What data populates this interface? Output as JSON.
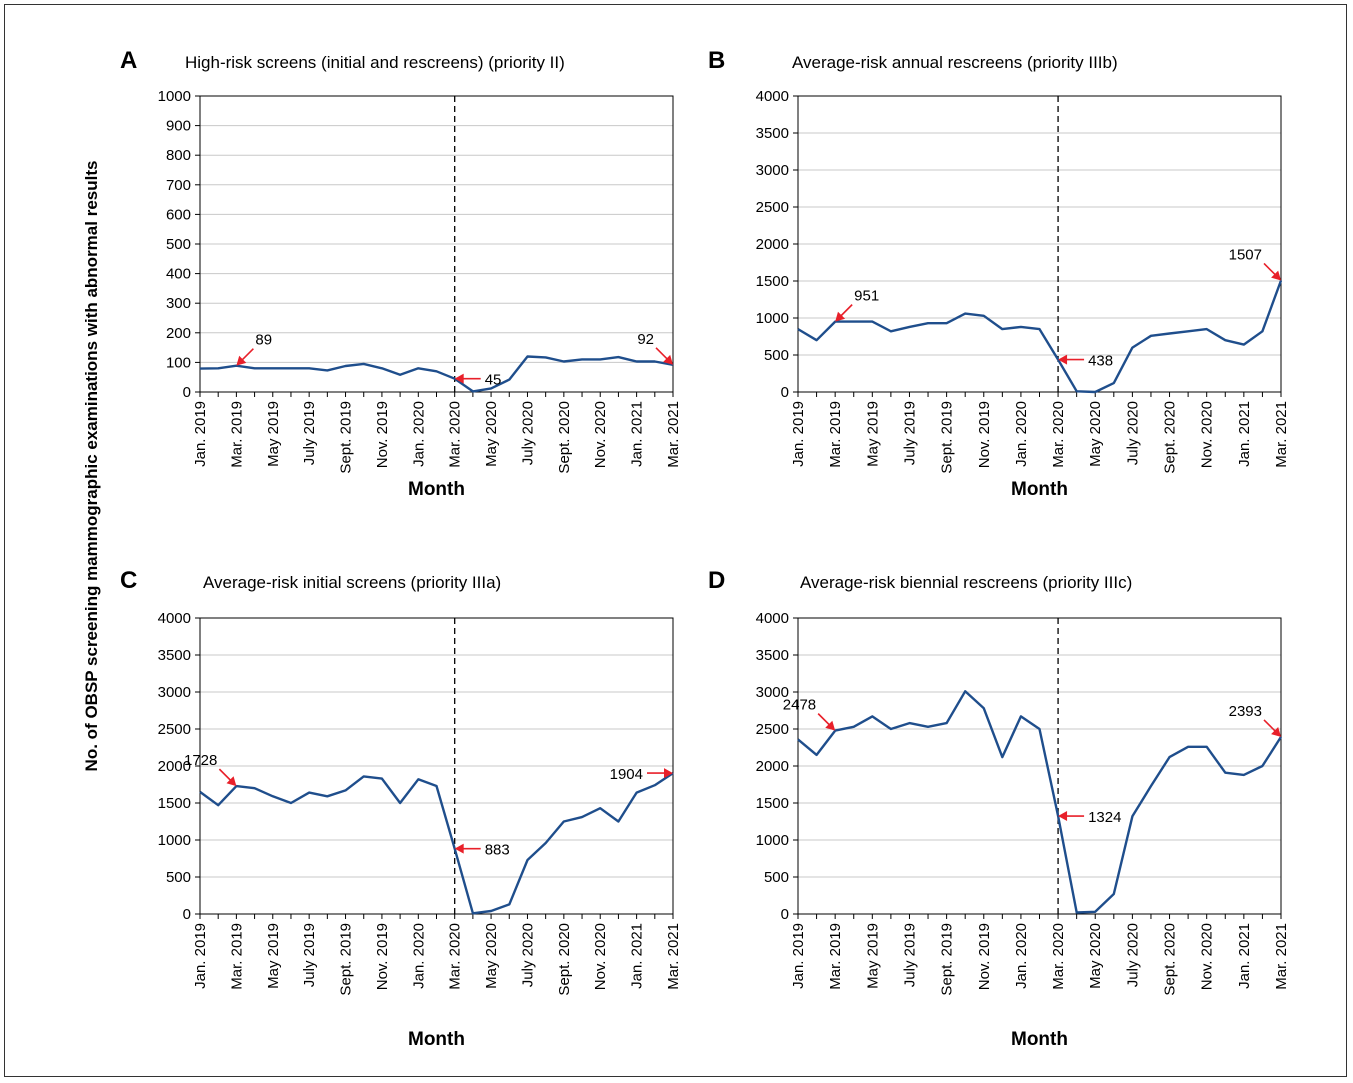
{
  "figure": {
    "ylabel": "No. of OBSP screening mammographic examinations with abnormal results",
    "line_color": "#1f4e8c",
    "arrow_color": "#e8202a",
    "grid_color": "#c8c8c8"
  },
  "chart_data": [
    {
      "type": "line",
      "panel": "A",
      "title": "High-risk screens (initial and rescreens) (priority II)",
      "xlabel": "Month",
      "ylim": [
        0,
        1000
      ],
      "yticks": [
        0,
        100,
        200,
        300,
        400,
        500,
        600,
        700,
        800,
        900,
        1000
      ],
      "x": [
        "Jan. 2019",
        "Feb. 2019",
        "Mar. 2019",
        "Apr. 2019",
        "May 2019",
        "June 2019",
        "July 2019",
        "Aug. 2019",
        "Sept. 2019",
        "Oct. 2019",
        "Nov. 2019",
        "Dec. 2019",
        "Jan. 2020",
        "Feb. 2020",
        "Mar. 2020",
        "Apr. 2020",
        "May 2020",
        "June 2020",
        "July 2020",
        "Aug. 2020",
        "Sept. 2020",
        "Oct. 2020",
        "Nov. 2020",
        "Dec. 2020",
        "Jan. 2021",
        "Feb. 2021",
        "Mar. 2021"
      ],
      "xtick_labels": [
        "Jan. 2019",
        "Mar. 2019",
        "May 2019",
        "July 2019",
        "Sept. 2019",
        "Nov. 2019",
        "Jan. 2020",
        "Mar. 2020",
        "May 2020",
        "July 2020",
        "Sept. 2020",
        "Nov. 2020",
        "Jan. 2021",
        "Mar. 2021"
      ],
      "values": [
        79,
        80,
        89,
        80,
        80,
        80,
        80,
        73,
        88,
        95,
        80,
        58,
        80,
        70,
        45,
        2,
        12,
        42,
        120,
        117,
        103,
        110,
        110,
        118,
        103,
        103,
        92
      ],
      "divider_index": 14,
      "grid": true,
      "annotations": [
        {
          "label": "89",
          "index": 2,
          "dir": "up-right"
        },
        {
          "label": "45",
          "index": 14,
          "dir": "right"
        },
        {
          "label": "92",
          "index": 26,
          "dir": "up-left"
        }
      ]
    },
    {
      "type": "line",
      "panel": "B",
      "title": "Average-risk annual rescreens (priority IIIb)",
      "xlabel": "Month",
      "ylim": [
        0,
        4000
      ],
      "yticks": [
        0,
        500,
        1000,
        1500,
        2000,
        2500,
        3000,
        3500,
        4000
      ],
      "x": [
        "Jan. 2019",
        "Feb. 2019",
        "Mar. 2019",
        "Apr. 2019",
        "May 2019",
        "June 2019",
        "July 2019",
        "Aug. 2019",
        "Sept. 2019",
        "Oct. 2019",
        "Nov. 2019",
        "Dec. 2019",
        "Jan. 2020",
        "Feb. 2020",
        "Mar. 2020",
        "Apr. 2020",
        "May 2020",
        "June 2020",
        "July 2020",
        "Aug. 2020",
        "Sept. 2020",
        "Oct. 2020",
        "Nov. 2020",
        "Dec. 2020",
        "Jan. 2021",
        "Feb. 2021",
        "Mar. 2021"
      ],
      "xtick_labels": [
        "Jan. 2019",
        "Mar. 2019",
        "May 2019",
        "July 2019",
        "Sept. 2019",
        "Nov. 2019",
        "Jan. 2020",
        "Mar. 2020",
        "May 2020",
        "July 2020",
        "Sept. 2020",
        "Nov. 2020",
        "Jan. 2021",
        "Mar. 2021"
      ],
      "values": [
        850,
        700,
        951,
        951,
        951,
        820,
        880,
        930,
        930,
        1060,
        1030,
        850,
        880,
        850,
        438,
        10,
        0,
        120,
        600,
        760,
        790,
        820,
        850,
        700,
        640,
        820,
        1507
      ],
      "divider_index": 14,
      "grid": true,
      "annotations": [
        {
          "label": "951",
          "index": 2,
          "dir": "up-right"
        },
        {
          "label": "438",
          "index": 14,
          "dir": "right"
        },
        {
          "label": "1507",
          "index": 26,
          "dir": "up-left"
        }
      ]
    },
    {
      "type": "line",
      "panel": "C",
      "title": "Average-risk initial screens (priority IIIa)",
      "xlabel": "Month",
      "ylim": [
        0,
        4000
      ],
      "yticks": [
        0,
        500,
        1000,
        1500,
        2000,
        2500,
        3000,
        3500,
        4000
      ],
      "x": [
        "Jan. 2019",
        "Feb. 2019",
        "Mar. 2019",
        "Apr. 2019",
        "May 2019",
        "June 2019",
        "July 2019",
        "Aug. 2019",
        "Sept. 2019",
        "Oct. 2019",
        "Nov. 2019",
        "Dec. 2019",
        "Jan. 2020",
        "Feb. 2020",
        "Mar. 2020",
        "Apr. 2020",
        "May 2020",
        "June 2020",
        "July 2020",
        "Aug. 2020",
        "Sept. 2020",
        "Oct. 2020",
        "Nov. 2020",
        "Dec. 2020",
        "Jan. 2021",
        "Feb. 2021",
        "Mar. 2021"
      ],
      "xtick_labels": [
        "Jan. 2019",
        "Mar. 2019",
        "May 2019",
        "July 2019",
        "Sept. 2019",
        "Nov. 2019",
        "Jan. 2020",
        "Mar. 2020",
        "May 2020",
        "July 2020",
        "Sept. 2020",
        "Nov. 2020",
        "Jan. 2021",
        "Mar. 2021"
      ],
      "values": [
        1650,
        1470,
        1728,
        1700,
        1590,
        1500,
        1640,
        1590,
        1670,
        1860,
        1830,
        1500,
        1820,
        1730,
        883,
        10,
        40,
        130,
        730,
        960,
        1250,
        1310,
        1430,
        1250,
        1640,
        1740,
        1904
      ],
      "divider_index": 14,
      "grid": true,
      "annotations": [
        {
          "label": "1728",
          "index": 2,
          "dir": "up-left"
        },
        {
          "label": "883",
          "index": 14,
          "dir": "right"
        },
        {
          "label": "1904",
          "index": 26,
          "dir": "left"
        }
      ]
    },
    {
      "type": "line",
      "panel": "D",
      "title": "Average-risk biennial rescreens (priority IIIc)",
      "xlabel": "Month",
      "ylim": [
        0,
        4000
      ],
      "yticks": [
        0,
        500,
        1000,
        1500,
        2000,
        2500,
        3000,
        3500,
        4000
      ],
      "x": [
        "Jan. 2019",
        "Feb. 2019",
        "Mar. 2019",
        "Apr. 2019",
        "May 2019",
        "June 2019",
        "July 2019",
        "Aug. 2019",
        "Sept. 2019",
        "Oct. 2019",
        "Nov. 2019",
        "Dec. 2019",
        "Jan. 2020",
        "Feb. 2020",
        "Mar. 2020",
        "Apr. 2020",
        "May 2020",
        "June 2020",
        "July 2020",
        "Aug. 2020",
        "Sept. 2020",
        "Oct. 2020",
        "Nov. 2020",
        "Dec. 2020",
        "Jan. 2021",
        "Feb. 2021",
        "Mar. 2021"
      ],
      "xtick_labels": [
        "Jan. 2019",
        "Mar. 2019",
        "May 2019",
        "July 2019",
        "Sept. 2019",
        "Nov. 2019",
        "Jan. 2020",
        "Mar. 2020",
        "May 2020",
        "July 2020",
        "Sept. 2020",
        "Nov. 2020",
        "Jan. 2021",
        "Mar. 2021"
      ],
      "values": [
        2360,
        2150,
        2478,
        2530,
        2670,
        2500,
        2580,
        2530,
        2580,
        3010,
        2780,
        2120,
        2670,
        2500,
        1324,
        20,
        30,
        270,
        1320,
        1730,
        2120,
        2260,
        2260,
        1910,
        1880,
        2000,
        2393
      ],
      "divider_index": 14,
      "grid": true,
      "annotations": [
        {
          "label": "2478",
          "index": 2,
          "dir": "up-left"
        },
        {
          "label": "1324",
          "index": 14,
          "dir": "right"
        },
        {
          "label": "2393",
          "index": 26,
          "dir": "up-left"
        }
      ]
    }
  ]
}
